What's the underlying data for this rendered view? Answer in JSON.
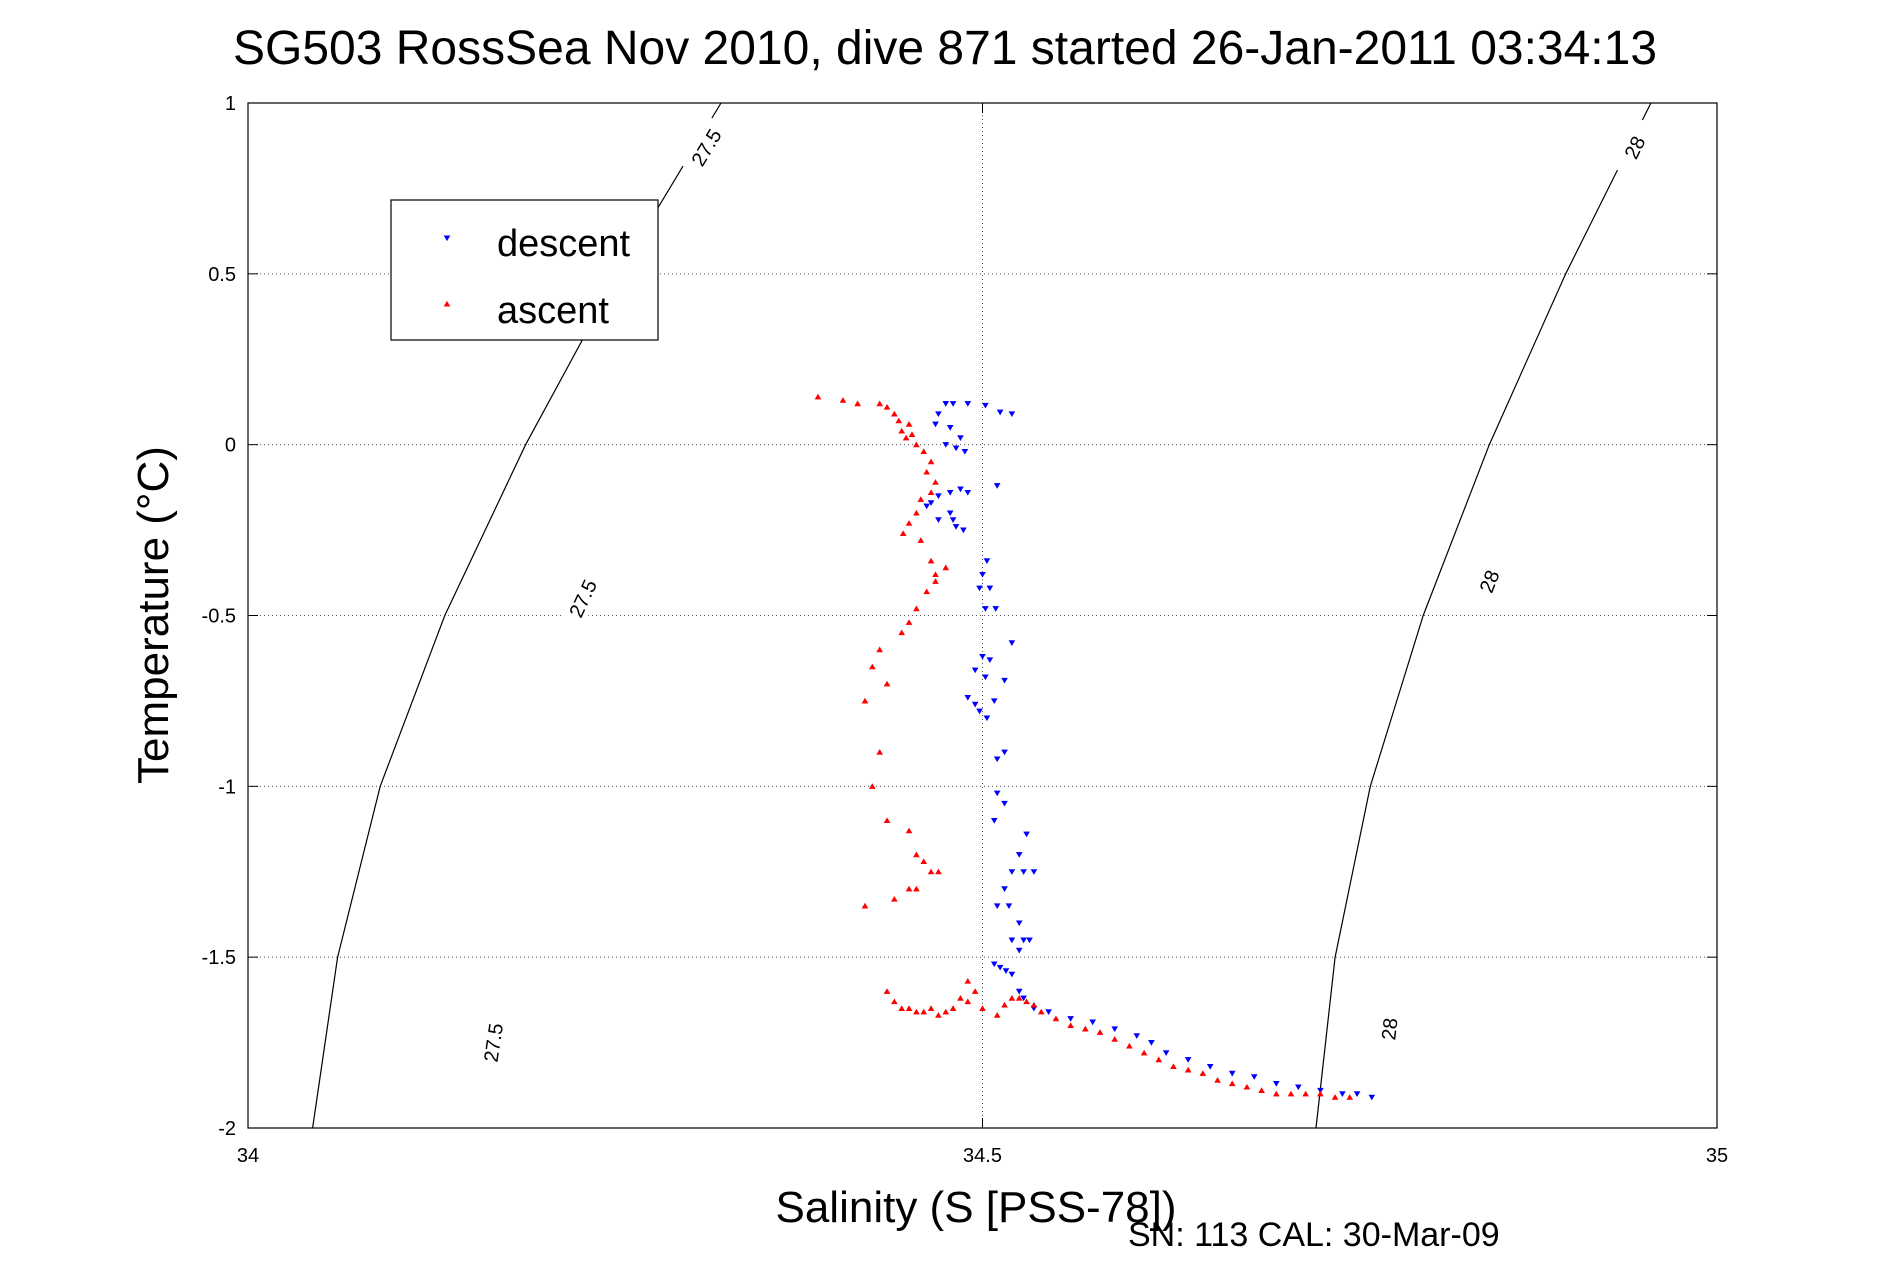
{
  "chart_data": {
    "type": "scatter",
    "title": "SG503 RossSea Nov 2010, dive 871 started 26-Jan-2011 03:34:13",
    "xlabel": "Salinity (S [PSS-78])",
    "ylabel": "Temperature (°C)",
    "xlim": [
      34,
      35
    ],
    "ylim": [
      -2,
      1
    ],
    "x_ticks": [
      "34",
      "34.5",
      "35"
    ],
    "y_ticks": [
      "1",
      "0.5",
      "0",
      "-0.5",
      "-1",
      "-1.5",
      "-2"
    ],
    "grid": true,
    "legend_position": "top-left",
    "footer": "SN: 113  CAL: 30-Mar-09",
    "density_contours": [
      {
        "label": "27.5",
        "points": [
          [
            34.322,
            1.0
          ],
          [
            34.252,
            0.5
          ],
          [
            34.189,
            0.0
          ],
          [
            34.134,
            -0.5
          ],
          [
            34.09,
            -1.0
          ],
          [
            34.061,
            -1.5
          ],
          [
            34.044,
            -2.0
          ]
        ],
        "label_positions": [
          [
            34.312,
            0.87
          ],
          [
            34.228,
            -0.45
          ],
          [
            34.167,
            -1.75
          ]
        ]
      },
      {
        "label": "28",
        "points": [
          [
            34.955,
            1.0
          ],
          [
            34.897,
            0.5
          ],
          [
            34.845,
            0.0
          ],
          [
            34.8,
            -0.5
          ],
          [
            34.764,
            -1.0
          ],
          [
            34.74,
            -1.5
          ],
          [
            34.727,
            -2.0
          ]
        ],
        "label_positions": [
          [
            34.944,
            0.87
          ],
          [
            34.845,
            -0.4
          ],
          [
            34.777,
            -1.71
          ]
        ]
      }
    ],
    "series": [
      {
        "name": "descent",
        "color": "#0000ff",
        "marker": "triangle-down",
        "points": [
          [
            34.475,
            0.12
          ],
          [
            34.48,
            0.12
          ],
          [
            34.49,
            0.12
          ],
          [
            34.502,
            0.115
          ],
          [
            34.47,
            0.09
          ],
          [
            34.468,
            0.06
          ],
          [
            34.478,
            0.05
          ],
          [
            34.485,
            0.02
          ],
          [
            34.475,
            0.0
          ],
          [
            34.482,
            -0.01
          ],
          [
            34.488,
            -0.02
          ],
          [
            34.512,
            0.095
          ],
          [
            34.52,
            0.09
          ],
          [
            34.51,
            -0.12
          ],
          [
            34.47,
            -0.15
          ],
          [
            34.478,
            -0.14
          ],
          [
            34.485,
            -0.13
          ],
          [
            34.49,
            -0.14
          ],
          [
            34.462,
            -0.18
          ],
          [
            34.465,
            -0.17
          ],
          [
            34.47,
            -0.22
          ],
          [
            34.478,
            -0.2
          ],
          [
            34.48,
            -0.22
          ],
          [
            34.482,
            -0.24
          ],
          [
            34.487,
            -0.25
          ],
          [
            34.503,
            -0.34
          ],
          [
            34.5,
            -0.38
          ],
          [
            34.498,
            -0.42
          ],
          [
            34.505,
            -0.42
          ],
          [
            34.502,
            -0.48
          ],
          [
            34.509,
            -0.48
          ],
          [
            34.52,
            -0.58
          ],
          [
            34.5,
            -0.62
          ],
          [
            34.505,
            -0.63
          ],
          [
            34.495,
            -0.66
          ],
          [
            34.502,
            -0.68
          ],
          [
            34.49,
            -0.74
          ],
          [
            34.495,
            -0.76
          ],
          [
            34.498,
            -0.78
          ],
          [
            34.503,
            -0.8
          ],
          [
            34.508,
            -0.75
          ],
          [
            34.515,
            -0.69
          ],
          [
            34.515,
            -0.9
          ],
          [
            34.51,
            -0.92
          ],
          [
            34.51,
            -1.02
          ],
          [
            34.515,
            -1.05
          ],
          [
            34.508,
            -1.1
          ],
          [
            34.53,
            -1.14
          ],
          [
            34.525,
            -1.2
          ],
          [
            34.52,
            -1.25
          ],
          [
            34.528,
            -1.25
          ],
          [
            34.515,
            -1.3
          ],
          [
            34.535,
            -1.25
          ],
          [
            34.51,
            -1.35
          ],
          [
            34.518,
            -1.35
          ],
          [
            34.525,
            -1.4
          ],
          [
            34.52,
            -1.45
          ],
          [
            34.528,
            -1.45
          ],
          [
            34.532,
            -1.45
          ],
          [
            34.525,
            -1.48
          ],
          [
            34.508,
            -1.52
          ],
          [
            34.512,
            -1.53
          ],
          [
            34.516,
            -1.54
          ],
          [
            34.52,
            -1.55
          ],
          [
            34.525,
            -1.6
          ],
          [
            34.528,
            -1.62
          ],
          [
            34.535,
            -1.65
          ],
          [
            34.545,
            -1.66
          ],
          [
            34.56,
            -1.68
          ],
          [
            34.575,
            -1.69
          ],
          [
            34.59,
            -1.71
          ],
          [
            34.605,
            -1.73
          ],
          [
            34.615,
            -1.75
          ],
          [
            34.625,
            -1.78
          ],
          [
            34.64,
            -1.8
          ],
          [
            34.655,
            -1.82
          ],
          [
            34.67,
            -1.84
          ],
          [
            34.685,
            -1.85
          ],
          [
            34.7,
            -1.87
          ],
          [
            34.715,
            -1.88
          ],
          [
            34.73,
            -1.89
          ],
          [
            34.745,
            -1.9
          ],
          [
            34.755,
            -1.9
          ],
          [
            34.765,
            -1.91
          ]
        ]
      },
      {
        "name": "ascent",
        "color": "#ff0000",
        "marker": "triangle-up",
        "points": [
          [
            34.388,
            0.14
          ],
          [
            34.405,
            0.13
          ],
          [
            34.415,
            0.12
          ],
          [
            34.43,
            0.12
          ],
          [
            34.435,
            0.11
          ],
          [
            34.44,
            0.09
          ],
          [
            34.443,
            0.07
          ],
          [
            34.45,
            0.06
          ],
          [
            34.445,
            0.04
          ],
          [
            34.448,
            0.02
          ],
          [
            34.452,
            0.03
          ],
          [
            34.455,
            0.0
          ],
          [
            34.46,
            -0.02
          ],
          [
            34.465,
            -0.05
          ],
          [
            34.462,
            -0.08
          ],
          [
            34.468,
            -0.11
          ],
          [
            34.465,
            -0.14
          ],
          [
            34.458,
            -0.16
          ],
          [
            34.455,
            -0.2
          ],
          [
            34.45,
            -0.23
          ],
          [
            34.446,
            -0.26
          ],
          [
            34.458,
            -0.28
          ],
          [
            34.465,
            -0.34
          ],
          [
            34.468,
            -0.38
          ],
          [
            34.475,
            -0.36
          ],
          [
            34.468,
            -0.4
          ],
          [
            34.462,
            -0.43
          ],
          [
            34.455,
            -0.48
          ],
          [
            34.45,
            -0.52
          ],
          [
            34.445,
            -0.55
          ],
          [
            34.43,
            -0.6
          ],
          [
            34.425,
            -0.65
          ],
          [
            34.435,
            -0.7
          ],
          [
            34.42,
            -0.75
          ],
          [
            34.43,
            -0.9
          ],
          [
            34.425,
            -1.0
          ],
          [
            34.435,
            -1.1
          ],
          [
            34.45,
            -1.13
          ],
          [
            34.455,
            -1.2
          ],
          [
            34.46,
            -1.22
          ],
          [
            34.465,
            -1.25
          ],
          [
            34.47,
            -1.25
          ],
          [
            34.45,
            -1.3
          ],
          [
            34.455,
            -1.3
          ],
          [
            34.44,
            -1.33
          ],
          [
            34.42,
            -1.35
          ],
          [
            34.435,
            -1.6
          ],
          [
            34.44,
            -1.63
          ],
          [
            34.445,
            -1.65
          ],
          [
            34.45,
            -1.65
          ],
          [
            34.455,
            -1.66
          ],
          [
            34.46,
            -1.66
          ],
          [
            34.465,
            -1.65
          ],
          [
            34.47,
            -1.67
          ],
          [
            34.475,
            -1.66
          ],
          [
            34.48,
            -1.65
          ],
          [
            34.485,
            -1.62
          ],
          [
            34.49,
            -1.63
          ],
          [
            34.495,
            -1.6
          ],
          [
            34.49,
            -1.57
          ],
          [
            34.5,
            -1.65
          ],
          [
            34.51,
            -1.67
          ],
          [
            34.515,
            -1.64
          ],
          [
            34.52,
            -1.62
          ],
          [
            34.525,
            -1.62
          ],
          [
            34.53,
            -1.63
          ],
          [
            34.535,
            -1.64
          ],
          [
            34.54,
            -1.66
          ],
          [
            34.55,
            -1.68
          ],
          [
            34.56,
            -1.7
          ],
          [
            34.57,
            -1.71
          ],
          [
            34.58,
            -1.72
          ],
          [
            34.59,
            -1.74
          ],
          [
            34.6,
            -1.76
          ],
          [
            34.61,
            -1.78
          ],
          [
            34.62,
            -1.8
          ],
          [
            34.63,
            -1.82
          ],
          [
            34.64,
            -1.83
          ],
          [
            34.65,
            -1.84
          ],
          [
            34.66,
            -1.86
          ],
          [
            34.67,
            -1.87
          ],
          [
            34.68,
            -1.88
          ],
          [
            34.69,
            -1.89
          ],
          [
            34.7,
            -1.9
          ],
          [
            34.71,
            -1.9
          ],
          [
            34.72,
            -1.9
          ],
          [
            34.73,
            -1.9
          ],
          [
            34.74,
            -1.91
          ],
          [
            34.75,
            -1.91
          ]
        ]
      }
    ]
  }
}
